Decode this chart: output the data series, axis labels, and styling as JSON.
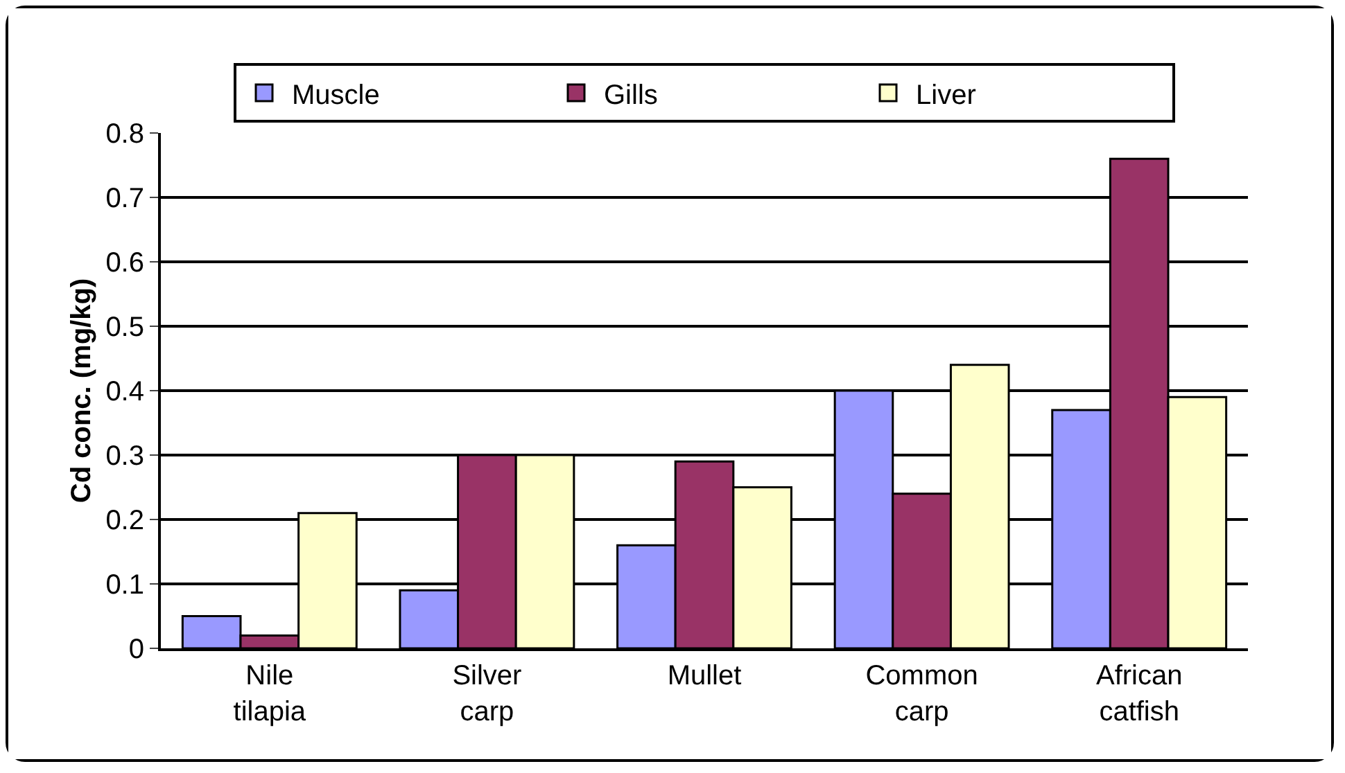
{
  "chart_data": {
    "type": "bar",
    "ylabel": "Cd conc. (mg/kg)",
    "categories": [
      "Nile\ntilapia",
      "Silver\ncarp",
      "Mullet",
      "Common\ncarp",
      "African\ncatfish"
    ],
    "series": [
      {
        "name": "Muscle",
        "color": "#9999ff",
        "values": [
          0.05,
          0.09,
          0.16,
          0.4,
          0.37
        ]
      },
      {
        "name": "Gills",
        "color": "#993366",
        "values": [
          0.02,
          0.3,
          0.29,
          0.24,
          0.76
        ]
      },
      {
        "name": "Liver",
        "color": "#ffffcc",
        "values": [
          0.21,
          0.3,
          0.25,
          0.44,
          0.39
        ]
      }
    ],
    "ylim": [
      0,
      0.8
    ],
    "yticks": [
      0,
      0.1,
      0.2,
      0.3,
      0.4,
      0.5,
      0.6,
      0.7,
      0.8
    ],
    "grid": "y",
    "legend": "top"
  }
}
